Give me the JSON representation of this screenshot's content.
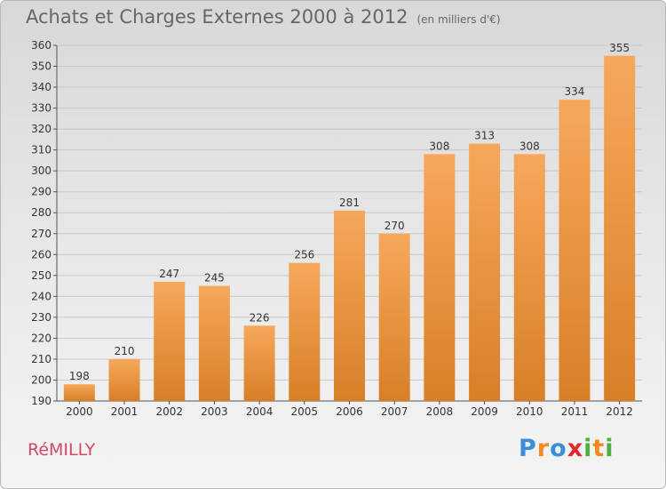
{
  "header": {
    "title": "Achats et Charges Externes 2000 à 2012",
    "subtitle": "(en milliers d'€)"
  },
  "footer": {
    "location": "RéMILLY",
    "logo": {
      "letters": [
        "P",
        "r",
        "o",
        "x",
        "i",
        "t",
        "i"
      ],
      "colors": [
        "#3a8fd8",
        "#f28a1f",
        "#3a8fd8",
        "#e0282e",
        "#4caf3f",
        "#f28a1f",
        "#4caf3f"
      ]
    }
  },
  "colors": {
    "bar_top": "#f6a85a",
    "bar_bottom": "#d87f27",
    "grid": "#c7c7c7"
  },
  "chart_data": {
    "type": "bar",
    "categories": [
      "2000",
      "2001",
      "2002",
      "2003",
      "2004",
      "2005",
      "2006",
      "2007",
      "2008",
      "2009",
      "2010",
      "2011",
      "2012"
    ],
    "values": [
      198,
      210,
      247,
      245,
      226,
      256,
      281,
      270,
      308,
      313,
      308,
      334,
      355
    ],
    "title": "Achats et Charges Externes 2000 à 2012",
    "subtitle": "(en milliers d'€)",
    "xlabel": "",
    "ylabel": "",
    "ylim": [
      190,
      360
    ],
    "yticks": [
      190,
      200,
      210,
      220,
      230,
      240,
      250,
      260,
      270,
      280,
      290,
      300,
      310,
      320,
      330,
      340,
      350,
      360
    ],
    "grid": true,
    "data_labels": true
  }
}
